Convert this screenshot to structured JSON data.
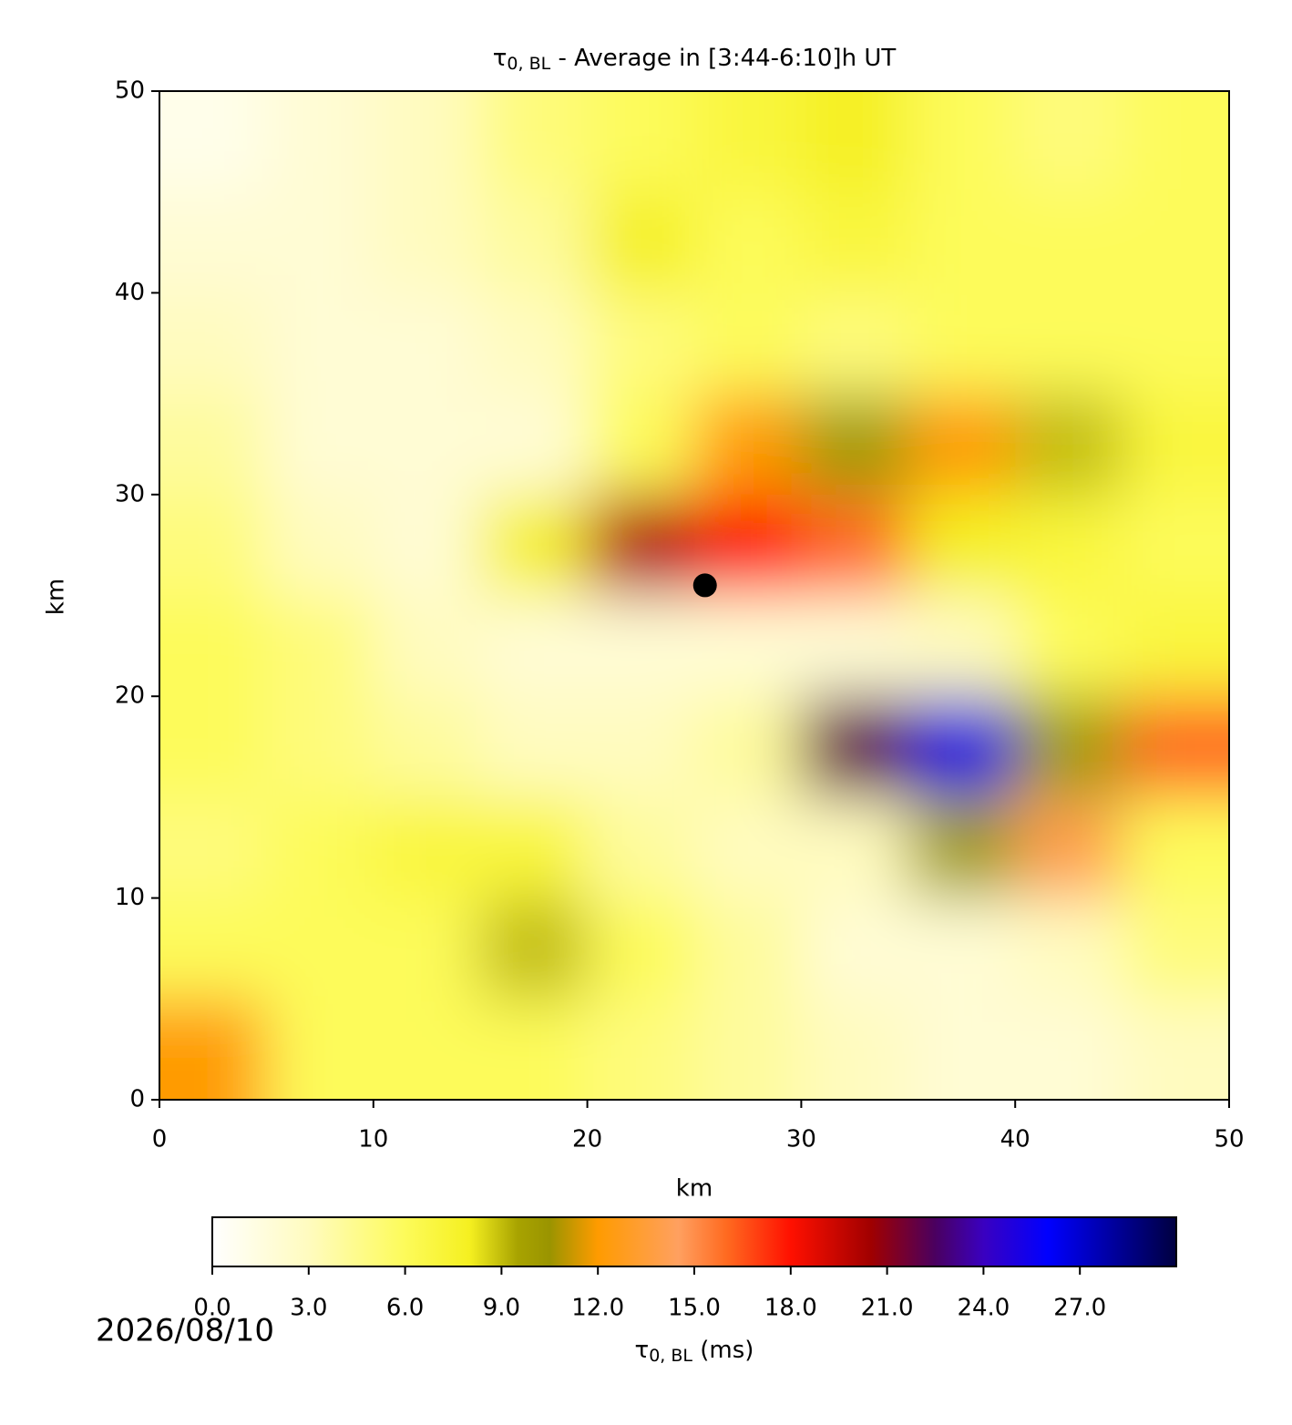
{
  "chart_data": {
    "type": "heatmap",
    "title_symbol": "τ",
    "title_subscript": "0, BL",
    "title_rest": " - Average in [3:44-6:10]h UT",
    "x_label": "km",
    "y_label": "km",
    "xlim": [
      0,
      50
    ],
    "ylim": [
      0,
      50
    ],
    "xticks": [
      0,
      10,
      20,
      30,
      40,
      50
    ],
    "yticks": [
      0,
      10,
      20,
      30,
      40,
      50
    ],
    "x": [
      2.5,
      7.5,
      12.5,
      17.5,
      22.5,
      27.5,
      32.5,
      37.5,
      42.5,
      47.5
    ],
    "y": [
      47.5,
      42.5,
      37.5,
      32.5,
      27.5,
      22.5,
      17.5,
      12.5,
      7.5,
      2.5
    ],
    "z": [
      [
        1,
        2,
        3,
        5,
        6,
        7,
        8,
        6,
        5,
        6
      ],
      [
        2,
        2,
        3,
        4,
        8,
        6,
        7,
        6,
        6,
        6
      ],
      [
        3,
        2,
        2,
        3,
        5,
        6,
        5,
        6,
        6,
        6
      ],
      [
        4,
        2,
        2,
        2,
        6,
        12,
        10,
        12,
        9,
        7
      ],
      [
        5,
        3,
        2,
        8,
        20,
        18,
        16,
        8,
        7,
        6
      ],
      [
        6,
        5,
        3,
        2,
        2,
        2,
        2,
        3,
        6,
        7
      ],
      [
        6,
        5,
        4,
        3,
        3,
        4,
        22,
        25,
        10,
        16
      ],
      [
        5,
        6,
        7,
        7,
        4,
        3,
        3,
        10,
        14,
        6
      ],
      [
        6,
        6,
        6,
        9,
        6,
        4,
        2,
        2,
        3,
        5
      ],
      [
        12,
        6,
        6,
        6,
        5,
        4,
        3,
        2,
        2,
        3
      ]
    ],
    "marker": {
      "x": 25.5,
      "y": 25.5,
      "color": "#000000"
    },
    "colormap": [
      [
        0,
        "#ffffff"
      ],
      [
        3,
        "#fffbbf"
      ],
      [
        6,
        "#fdfb5a"
      ],
      [
        8,
        "#f5f020"
      ],
      [
        9.5,
        "#a8a300"
      ],
      [
        10.5,
        "#9a9400"
      ],
      [
        12,
        "#ff9b00"
      ],
      [
        14.5,
        "#ffa060"
      ],
      [
        16,
        "#ff6a20"
      ],
      [
        18,
        "#ff1000"
      ],
      [
        20.5,
        "#a00000"
      ],
      [
        22.5,
        "#4a0060"
      ],
      [
        24,
        "#3a00c0"
      ],
      [
        26,
        "#0000ff"
      ],
      [
        30,
        "#000040"
      ]
    ],
    "colorbar": {
      "lim": [
        0,
        30
      ],
      "ticks": [
        {
          "value": 0,
          "label": "0.0"
        },
        {
          "value": 3,
          "label": "3.0"
        },
        {
          "value": 6,
          "label": "6.0"
        },
        {
          "value": 9,
          "label": "9.0"
        },
        {
          "value": 12,
          "label": "12.0"
        },
        {
          "value": 15,
          "label": "15.0"
        },
        {
          "value": 18,
          "label": "18.0"
        },
        {
          "value": 21,
          "label": "21.0"
        },
        {
          "value": 24,
          "label": "24.0"
        },
        {
          "value": 27,
          "label": "27.0"
        }
      ],
      "label_symbol": "τ",
      "label_subscript": "0, BL",
      "label_rest": " (ms)"
    },
    "date": "2026/08/10"
  }
}
